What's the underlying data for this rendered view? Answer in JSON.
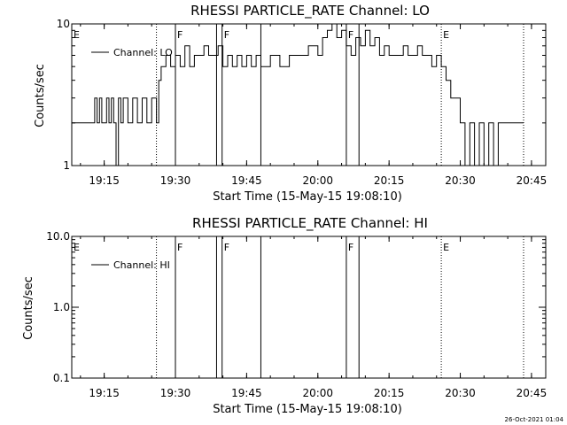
{
  "timestamp": "26-Oct-2021 01:04",
  "chart_data": [
    {
      "type": "line",
      "title": "RHESSI PARTICLE_RATE Channel: LO",
      "xlabel": "Start Time (15-May-15 19:08:10)",
      "ylabel": "Counts/sec",
      "yscale": "log",
      "ylim": [
        1,
        10
      ],
      "xlim": [
        "19:08:10",
        "20:48:00"
      ],
      "x_ticks": [
        "19:15",
        "19:30",
        "19:45",
        "20:00",
        "20:15",
        "20:30",
        "20:45"
      ],
      "y_ticks": [
        "1",
        "10"
      ],
      "legend": {
        "label": "Channel: LO",
        "position": "top-left"
      },
      "markers": [
        {
          "label": "E",
          "time": "19:08:10",
          "style": "dotted"
        },
        {
          "label": "",
          "time": "19:26:00",
          "style": "dotted"
        },
        {
          "label": "F",
          "time": "19:30:00",
          "style": "solid"
        },
        {
          "label": "",
          "time": "19:38:40",
          "style": "solid"
        },
        {
          "label": "F",
          "time": "19:39:50",
          "style": "solid"
        },
        {
          "label": "",
          "time": "19:48:00",
          "style": "solid"
        },
        {
          "label": "F",
          "time": "20:06:00",
          "style": "solid"
        },
        {
          "label": "",
          "time": "20:08:40",
          "style": "solid"
        },
        {
          "label": "E",
          "time": "20:26:00",
          "style": "dotted"
        },
        {
          "label": "",
          "time": "20:43:20",
          "style": "dotted"
        }
      ],
      "series": [
        {
          "name": "Channel: LO",
          "points": [
            [
              "19:08:10",
              2
            ],
            [
              "19:12:00",
              2
            ],
            [
              "19:13:00",
              3
            ],
            [
              "19:13:30",
              2
            ],
            [
              "19:14:00",
              3
            ],
            [
              "19:14:30",
              2
            ],
            [
              "19:15:30",
              3
            ],
            [
              "19:16:00",
              2
            ],
            [
              "19:16:30",
              3
            ],
            [
              "19:17:00",
              2
            ],
            [
              "19:17:30",
              1
            ],
            [
              "19:18:00",
              3
            ],
            [
              "19:18:30",
              2
            ],
            [
              "19:19:00",
              3
            ],
            [
              "19:20:00",
              2
            ],
            [
              "19:21:00",
              3
            ],
            [
              "19:22:00",
              2
            ],
            [
              "19:23:00",
              3
            ],
            [
              "19:24:00",
              2
            ],
            [
              "19:25:00",
              3
            ],
            [
              "19:26:00",
              2
            ],
            [
              "19:26:30",
              4
            ],
            [
              "19:27:00",
              5
            ],
            [
              "19:28:00",
              6
            ],
            [
              "19:29:00",
              5
            ],
            [
              "19:30:00",
              6
            ],
            [
              "19:31:00",
              5
            ],
            [
              "19:32:00",
              7
            ],
            [
              "19:33:00",
              5
            ],
            [
              "19:34:00",
              6
            ],
            [
              "19:35:00",
              6
            ],
            [
              "19:36:00",
              7
            ],
            [
              "19:37:00",
              6
            ],
            [
              "19:38:00",
              6
            ],
            [
              "19:39:00",
              7
            ],
            [
              "19:40:00",
              5
            ],
            [
              "19:41:00",
              6
            ],
            [
              "19:42:00",
              5
            ],
            [
              "19:43:00",
              6
            ],
            [
              "19:44:00",
              5
            ],
            [
              "19:45:00",
              6
            ],
            [
              "19:46:00",
              5
            ],
            [
              "19:47:00",
              6
            ],
            [
              "19:48:00",
              5
            ],
            [
              "19:50:00",
              6
            ],
            [
              "19:52:00",
              5
            ],
            [
              "19:54:00",
              6
            ],
            [
              "19:56:00",
              6
            ],
            [
              "19:58:00",
              7
            ],
            [
              "20:00:00",
              6
            ],
            [
              "20:01:00",
              8
            ],
            [
              "20:02:00",
              9
            ],
            [
              "20:03:00",
              10
            ],
            [
              "20:04:00",
              8
            ],
            [
              "20:05:00",
              9
            ],
            [
              "20:06:00",
              7
            ],
            [
              "20:07:00",
              6
            ],
            [
              "20:08:00",
              8
            ],
            [
              "20:09:00",
              7
            ],
            [
              "20:10:00",
              9
            ],
            [
              "20:11:00",
              7
            ],
            [
              "20:12:00",
              8
            ],
            [
              "20:13:00",
              6
            ],
            [
              "20:14:00",
              7
            ],
            [
              "20:15:00",
              6
            ],
            [
              "20:17:00",
              6
            ],
            [
              "20:18:00",
              7
            ],
            [
              "20:19:00",
              6
            ],
            [
              "20:20:00",
              6
            ],
            [
              "20:21:00",
              7
            ],
            [
              "20:22:00",
              6
            ],
            [
              "20:23:00",
              6
            ],
            [
              "20:24:00",
              5
            ],
            [
              "20:25:00",
              6
            ],
            [
              "20:26:00",
              5
            ],
            [
              "20:27:00",
              4
            ],
            [
              "20:28:00",
              3
            ],
            [
              "20:29:00",
              3
            ],
            [
              "20:30:00",
              2
            ],
            [
              "20:31:00",
              1
            ],
            [
              "20:32:00",
              2
            ],
            [
              "20:33:00",
              1
            ],
            [
              "20:34:00",
              2
            ],
            [
              "20:35:00",
              1
            ],
            [
              "20:36:00",
              2
            ],
            [
              "20:37:00",
              1
            ],
            [
              "20:38:00",
              2
            ],
            [
              "20:39:00",
              2
            ],
            [
              "20:43:20",
              2
            ]
          ]
        }
      ]
    },
    {
      "type": "line",
      "title": "RHESSI PARTICLE_RATE Channel: HI",
      "xlabel": "Start Time (15-May-15 19:08:10)",
      "ylabel": "Counts/sec",
      "yscale": "log",
      "ylim": [
        0.1,
        10
      ],
      "xlim": [
        "19:08:10",
        "20:48:00"
      ],
      "x_ticks": [
        "19:15",
        "19:30",
        "19:45",
        "20:00",
        "20:15",
        "20:30",
        "20:45"
      ],
      "y_ticks": [
        "0.1",
        "1.0",
        "10.0"
      ],
      "legend": {
        "label": "Channel: HI",
        "position": "top-left"
      },
      "markers": [
        {
          "label": "E",
          "time": "19:08:10",
          "style": "dotted"
        },
        {
          "label": "",
          "time": "19:26:00",
          "style": "dotted"
        },
        {
          "label": "F",
          "time": "19:30:00",
          "style": "solid"
        },
        {
          "label": "",
          "time": "19:38:40",
          "style": "solid"
        },
        {
          "label": "F",
          "time": "19:39:50",
          "style": "solid"
        },
        {
          "label": "",
          "time": "19:48:00",
          "style": "solid"
        },
        {
          "label": "F",
          "time": "20:06:00",
          "style": "solid"
        },
        {
          "label": "",
          "time": "20:08:40",
          "style": "solid"
        },
        {
          "label": "E",
          "time": "20:26:00",
          "style": "dotted"
        },
        {
          "label": "",
          "time": "20:43:20",
          "style": "dotted"
        }
      ],
      "series": [
        {
          "name": "Channel: HI",
          "points": []
        }
      ]
    }
  ]
}
